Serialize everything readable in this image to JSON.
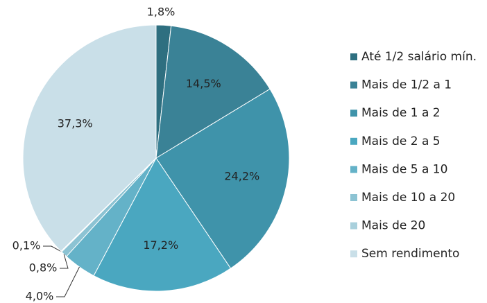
{
  "chart_data": {
    "type": "pie",
    "categories": [
      "Até 1/2 salário mín.",
      "Mais de 1/2 a 1",
      "Mais de 1 a 2",
      "Mais de 2 a 5",
      "Mais de 5 a 10",
      "Mais de 10 a 20",
      "Mais de 20",
      "Sem rendimento"
    ],
    "values": [
      1.8,
      14.5,
      24.2,
      17.2,
      4.0,
      0.8,
      0.1,
      37.3
    ],
    "value_labels": [
      "1,8%",
      "14,5%",
      "24,2%",
      "17,2%",
      "4,0%",
      "0,8%",
      "0,1%",
      "37,3%"
    ],
    "colors": [
      "#2e6f80",
      "#3a8296",
      "#3f93aa",
      "#4aa7c0",
      "#64b2c8",
      "#8cc3d3",
      "#a9d0dc",
      "#c9dfe8"
    ],
    "legend": "right"
  }
}
